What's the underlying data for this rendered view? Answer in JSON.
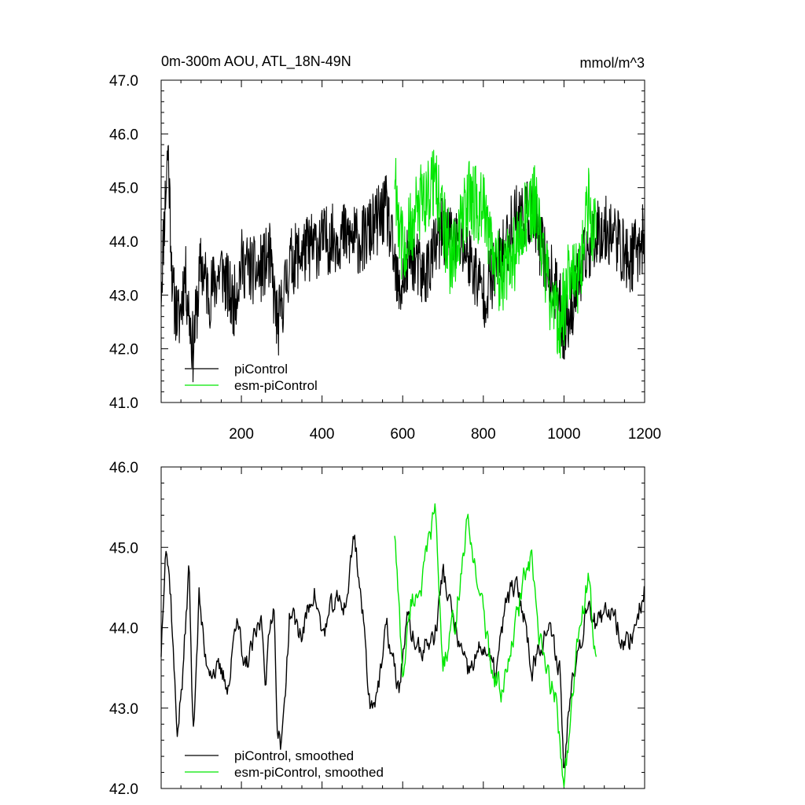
{
  "header": {
    "title": "0m-300m AOU, ATL_18N-49N",
    "units": "mmol/m^3"
  },
  "colors": {
    "piControl": "#000000",
    "esm_piControl": "#00e600"
  },
  "chart_data": [
    {
      "type": "line",
      "title": "0m-300m AOU, ATL_18N-49N",
      "xlim": [
        1,
        1200
      ],
      "ylim": [
        41.0,
        47.0
      ],
      "x_ticks": [
        200,
        400,
        600,
        800,
        1000,
        1200
      ],
      "y_ticks": [
        "41.0",
        "42.0",
        "43.0",
        "44.0",
        "45.0",
        "46.0",
        "47.0"
      ],
      "legend": {
        "position": "bottom-left",
        "entries": [
          "piControl",
          "esm-piControl"
        ]
      },
      "series": [
        {
          "name": "piControl",
          "color": "#000000",
          "x_start": 1,
          "x_end": 1200,
          "anchors": [
            [
              1,
              43.1
            ],
            [
              10,
              44.6
            ],
            [
              18,
              45.8
            ],
            [
              30,
              43.0
            ],
            [
              45,
              42.5
            ],
            [
              60,
              43.4
            ],
            [
              80,
              42.0
            ],
            [
              100,
              43.6
            ],
            [
              120,
              43.0
            ],
            [
              150,
              43.5
            ],
            [
              180,
              42.8
            ],
            [
              200,
              43.6
            ],
            [
              240,
              43.4
            ],
            [
              270,
              43.7
            ],
            [
              290,
              42.4
            ],
            [
              320,
              43.6
            ],
            [
              350,
              43.8
            ],
            [
              400,
              44.0
            ],
            [
              450,
              44.1
            ],
            [
              500,
              44.0
            ],
            [
              560,
              44.6
            ],
            [
              590,
              43.0
            ],
            [
              620,
              43.8
            ],
            [
              650,
              43.3
            ],
            [
              700,
              44.2
            ],
            [
              760,
              43.8
            ],
            [
              800,
              43.0
            ],
            [
              840,
              43.6
            ],
            [
              880,
              44.5
            ],
            [
              920,
              44.5
            ],
            [
              960,
              43.5
            ],
            [
              990,
              42.8
            ],
            [
              1000,
              42.3
            ],
            [
              1040,
              43.4
            ],
            [
              1080,
              44.2
            ],
            [
              1120,
              44.2
            ],
            [
              1160,
              43.6
            ],
            [
              1200,
              44.1
            ]
          ],
          "noise": 0.65
        },
        {
          "name": "esm-piControl",
          "color": "#00e600",
          "x_start": 580,
          "x_end": 1080,
          "anchors": [
            [
              580,
              45.3
            ],
            [
              600,
              43.8
            ],
            [
              640,
              44.6
            ],
            [
              680,
              45.2
            ],
            [
              720,
              43.6
            ],
            [
              760,
              44.8
            ],
            [
              800,
              44.6
            ],
            [
              840,
              43.4
            ],
            [
              870,
              43.6
            ],
            [
              900,
              44.4
            ],
            [
              930,
              44.7
            ],
            [
              960,
              43.2
            ],
            [
              990,
              42.4
            ],
            [
              1010,
              43.2
            ],
            [
              1040,
              43.3
            ],
            [
              1060,
              44.7
            ],
            [
              1080,
              44.1
            ]
          ],
          "noise": 0.75
        }
      ]
    },
    {
      "type": "line",
      "title": "",
      "xlim": [
        1,
        1200
      ],
      "ylim": [
        42.0,
        46.0
      ],
      "y_ticks": [
        "42.0",
        "43.0",
        "44.0",
        "45.0",
        "46.0"
      ],
      "legend": {
        "position": "bottom-left",
        "entries": [
          "piControl, smoothed",
          "esm-piControl, smoothed"
        ]
      },
      "series": [
        {
          "name": "piControl, smoothed",
          "color": "#000000",
          "x_start": 1,
          "x_end": 1200,
          "anchors": [
            [
              1,
              43.7
            ],
            [
              12,
              45.15
            ],
            [
              25,
              44.4
            ],
            [
              40,
              42.7
            ],
            [
              55,
              43.4
            ],
            [
              70,
              44.8
            ],
            [
              80,
              42.65
            ],
            [
              95,
              44.4
            ],
            [
              110,
              43.6
            ],
            [
              130,
              43.5
            ],
            [
              150,
              43.4
            ],
            [
              170,
              43.3
            ],
            [
              190,
              44.3
            ],
            [
              205,
              43.4
            ],
            [
              230,
              43.8
            ],
            [
              250,
              44.1
            ],
            [
              260,
              43.4
            ],
            [
              280,
              44.4
            ],
            [
              290,
              42.7
            ],
            [
              300,
              42.5
            ],
            [
              320,
              44.2
            ],
            [
              350,
              43.9
            ],
            [
              380,
              44.5
            ],
            [
              400,
              43.9
            ],
            [
              430,
              44.3
            ],
            [
              460,
              44.3
            ],
            [
              480,
              45.2
            ],
            [
              500,
              44.2
            ],
            [
              520,
              43.0
            ],
            [
              545,
              43.4
            ],
            [
              560,
              44.0
            ],
            [
              590,
              43.2
            ],
            [
              610,
              44.1
            ],
            [
              640,
              43.7
            ],
            [
              680,
              43.9
            ],
            [
              700,
              44.7
            ],
            [
              720,
              44.2
            ],
            [
              760,
              43.4
            ],
            [
              800,
              43.8
            ],
            [
              830,
              43.4
            ],
            [
              860,
              44.4
            ],
            [
              880,
              44.5
            ],
            [
              900,
              44.2
            ],
            [
              920,
              43.5
            ],
            [
              940,
              43.8
            ],
            [
              960,
              44.0
            ],
            [
              990,
              43.5
            ],
            [
              1000,
              42.2
            ],
            [
              1020,
              43.5
            ],
            [
              1040,
              43.8
            ],
            [
              1060,
              44.4
            ],
            [
              1080,
              44.0
            ],
            [
              1100,
              44.1
            ],
            [
              1120,
              44.3
            ],
            [
              1140,
              43.9
            ],
            [
              1160,
              43.8
            ],
            [
              1180,
              44.1
            ],
            [
              1200,
              44.5
            ]
          ],
          "noise": 0.28
        },
        {
          "name": "esm-piControl, smoothed",
          "color": "#00e600",
          "x_start": 580,
          "x_end": 1080,
          "anchors": [
            [
              580,
              45.2
            ],
            [
              600,
              43.4
            ],
            [
              620,
              44.3
            ],
            [
              650,
              44.6
            ],
            [
              680,
              45.5
            ],
            [
              700,
              43.5
            ],
            [
              730,
              44.1
            ],
            [
              760,
              45.3
            ],
            [
              790,
              44.5
            ],
            [
              820,
              43.5
            ],
            [
              850,
              43.2
            ],
            [
              880,
              44.0
            ],
            [
              900,
              44.6
            ],
            [
              920,
              44.8
            ],
            [
              940,
              43.8
            ],
            [
              960,
              43.4
            ],
            [
              980,
              43.1
            ],
            [
              1000,
              42.1
            ],
            [
              1020,
              43.0
            ],
            [
              1040,
              44.1
            ],
            [
              1060,
              44.6
            ],
            [
              1080,
              43.5
            ]
          ],
          "noise": 0.3
        }
      ]
    }
  ]
}
